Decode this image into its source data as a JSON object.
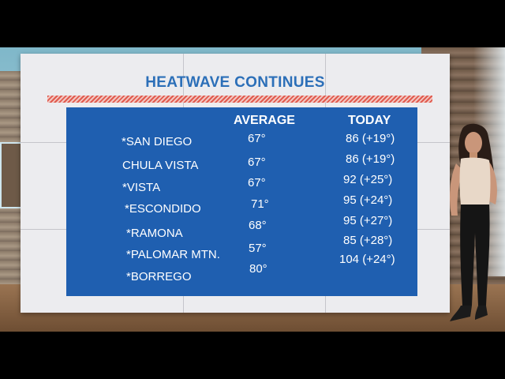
{
  "title": "HEATWAVE CONTINUES",
  "columns": {
    "average": "AVERAGE",
    "today": "TODAY"
  },
  "rows": [
    {
      "city": "*SAN DIEGO",
      "average": "67°",
      "today": "86 (+19°)"
    },
    {
      "city": "CHULA VISTA",
      "average": "67°",
      "today": "86 (+19°)"
    },
    {
      "city": "*VISTA",
      "average": "67°",
      "today": "92 (+25°)"
    },
    {
      "city": "*ESCONDIDO",
      "average": "71°",
      "today": "95 (+24°)"
    },
    {
      "city": "*RAMONA",
      "average": "68°",
      "today": "95 (+27°)"
    },
    {
      "city": "*PALOMAR MTN.",
      "average": "57°",
      "today": "85 (+28°)"
    },
    {
      "city": "*BORREGO",
      "average": "80°",
      "today": "104 (+24°)"
    }
  ],
  "colors": {
    "title": "#2c6fb8",
    "panel": "#1f5fb0",
    "stripe": "#e05b4f"
  }
}
